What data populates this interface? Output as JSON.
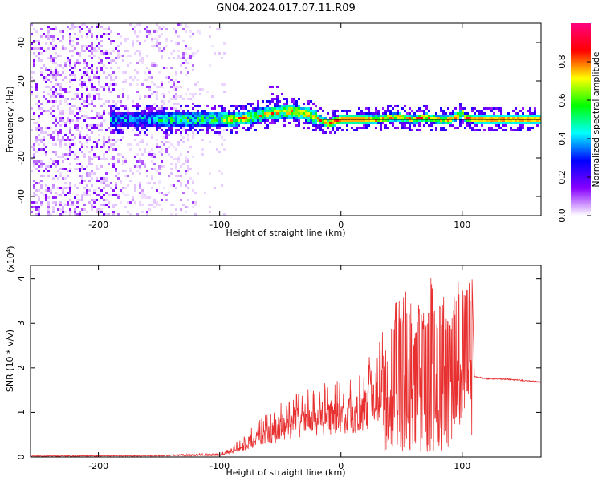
{
  "title": "GN04.2024.017.07.11.R09",
  "chart_data": [
    {
      "type": "heatmap",
      "xlabel": "Height of straight line (km)",
      "ylabel": "Frequency (Hz)",
      "xlim": [
        -256,
        165
      ],
      "ylim": [
        -50,
        50
      ],
      "xticks": [
        -200,
        -100,
        0,
        100
      ],
      "yticks": [
        -40,
        -20,
        0,
        20,
        40
      ],
      "colorbar": {
        "label": "Normalized spectral amplitude",
        "range": [
          0,
          1
        ],
        "ticks": [
          "0.0",
          "0.2",
          "0.4",
          "0.6",
          "0.8"
        ],
        "colormap": [
          "#ffffff",
          "#8800ff",
          "#0000ff",
          "#00ffff",
          "#00ff00",
          "#ffff00",
          "#ff0000",
          "#ff0080"
        ]
      },
      "ridge": {
        "x": [
          -185,
          -160,
          -130,
          -110,
          -90,
          -75,
          -60,
          -50,
          -40,
          -30,
          -20,
          -15,
          -10,
          0,
          10,
          20,
          30,
          40,
          50,
          60,
          70,
          80,
          90,
          98,
          100,
          102,
          110,
          130,
          165
        ],
        "y": [
          0,
          0,
          0,
          0,
          0,
          1,
          3,
          4,
          4,
          3,
          1,
          -1,
          -2,
          0,
          0,
          0,
          0,
          1,
          1,
          0,
          1,
          0,
          0,
          2,
          4,
          1,
          0,
          0,
          0
        ]
      }
    },
    {
      "type": "line",
      "xlabel": "Height of straight line (km)",
      "ylabel": "SNR (10 * v/v)",
      "yscale_label": "(x10",
      "yscale_exp": "4",
      "yscale_close": ")",
      "xlim": [
        -256,
        165
      ],
      "ylim": [
        0,
        4.3
      ],
      "xticks": [
        -200,
        -100,
        0,
        100
      ],
      "yticks": [
        0,
        1,
        2,
        3,
        4
      ],
      "color": "#e83030",
      "envelope": {
        "x": [
          -256,
          -150,
          -100,
          -90,
          -80,
          -70,
          -60,
          -50,
          -40,
          -30,
          -20,
          -10,
          0,
          10,
          20,
          30,
          40,
          45,
          50,
          55,
          60,
          65,
          70,
          75,
          80,
          85,
          90,
          95,
          100,
          105,
          108,
          110,
          120,
          140,
          165
        ],
        "y": [
          0.02,
          0.03,
          0.06,
          0.2,
          0.4,
          0.6,
          0.8,
          1.0,
          1.1,
          1.2,
          1.3,
          1.35,
          1.4,
          1.5,
          1.7,
          2.0,
          2.6,
          3.8,
          3.4,
          4.0,
          3.0,
          3.9,
          3.2,
          4.2,
          3.3,
          3.6,
          3.0,
          4.1,
          3.8,
          3.9,
          4.2,
          1.8,
          1.76,
          1.74,
          1.68
        ]
      }
    }
  ]
}
